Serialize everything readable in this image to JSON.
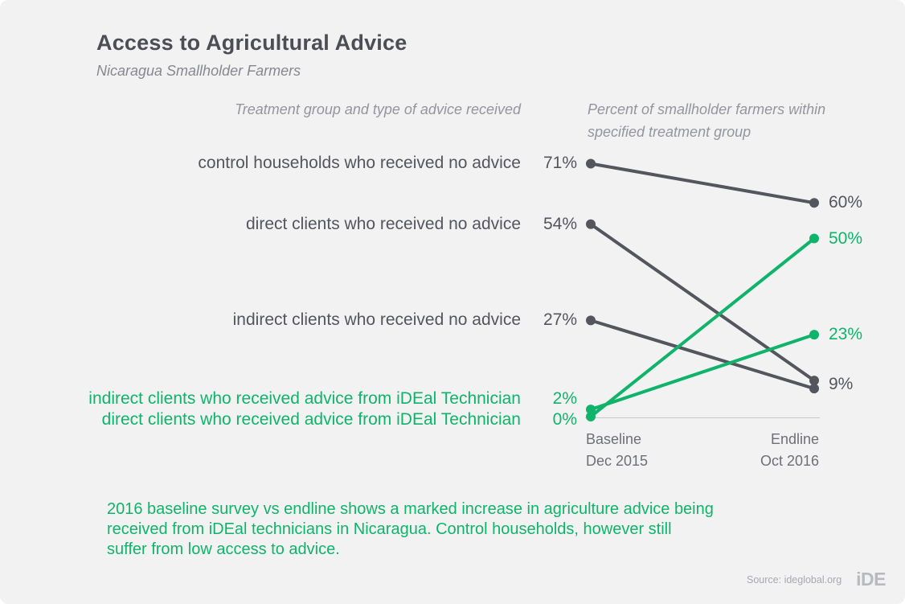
{
  "theme": {
    "background": "#f2f2f3",
    "gray": "#54555d",
    "green": "#0fb46a",
    "muted_gray": "#94959d",
    "axis_line": "#c7c7cb",
    "tick_gray": "#6e6f77",
    "source_gray": "#a8a9b0",
    "logo_gray": "#b9babf"
  },
  "header": {
    "title": "Access to Agricultural Advice",
    "subtitle": "Nicaragua Smallholder Farmers"
  },
  "columns": {
    "left_header": "Treatment group and type of advice received",
    "right_header": "Percent of smallholder farmers within specified treatment group"
  },
  "chart_data": {
    "type": "slope",
    "value_suffix": "%",
    "ylim": [
      0,
      76
    ],
    "grid": false,
    "x_ticks": [
      {
        "label": "Baseline",
        "sublabel": "Dec 2015"
      },
      {
        "label": "Endline",
        "sublabel": "Oct 2016"
      }
    ],
    "series": [
      {
        "name": "control households who received no advice",
        "baseline": 71,
        "endline": 60,
        "color": "gray",
        "label_dy": 0
      },
      {
        "name": "direct clients who received no advice",
        "baseline": 54,
        "endline": 9,
        "color": "gray",
        "label_dy": 0
      },
      {
        "name": "indirect clients who received no advice",
        "baseline": 27,
        "endline": 9,
        "color": "gray",
        "label_dy": 0
      },
      {
        "name": "indirect clients who received advice from iDEal Technician",
        "baseline": 2,
        "endline": 23,
        "color": "green",
        "label_dy": -13
      },
      {
        "name": "direct clients who received advice from iDEal Technician",
        "baseline": 0,
        "endline": 50,
        "color": "green",
        "label_dy": 4
      }
    ]
  },
  "caption": "2016 baseline survey vs endline shows a marked increase in agriculture advice being\nreceived from iDEal technicians in Nicaragua. Control households, however still\nsuffer from low access to advice.",
  "footer": {
    "source": "Source: ideglobal.org",
    "logo": "iDE"
  }
}
